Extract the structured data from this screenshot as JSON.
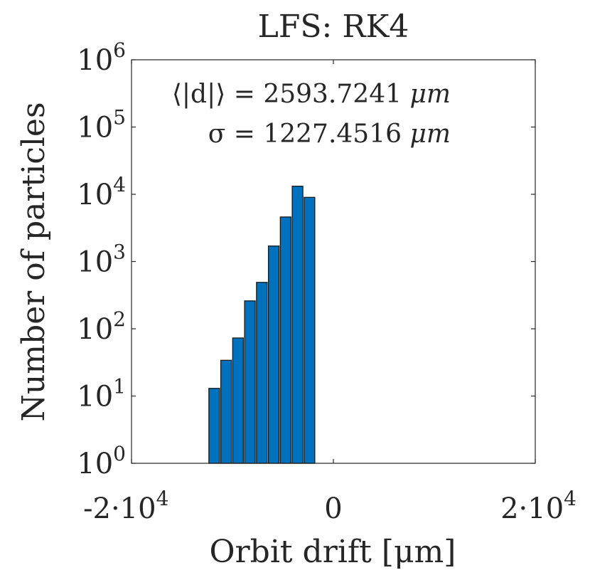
{
  "chart_data": {
    "type": "bar",
    "title": "LFS: RK4",
    "xlabel": "Orbit drift [μm]",
    "ylabel": "Number of particles",
    "yscale": "log",
    "xlim": [
      -20000,
      20000
    ],
    "ylim": [
      1,
      1000000
    ],
    "x_ticks": [
      {
        "value": -20000,
        "base": "-2·10",
        "exp": "4"
      },
      {
        "value": 0,
        "base": "0",
        "exp": ""
      },
      {
        "value": 20000,
        "base": "2·10",
        "exp": "4"
      }
    ],
    "y_ticks": [
      {
        "value": 1,
        "base": "10",
        "exp": "0"
      },
      {
        "value": 10,
        "base": "10",
        "exp": "1"
      },
      {
        "value": 100,
        "base": "10",
        "exp": "2"
      },
      {
        "value": 1000,
        "base": "10",
        "exp": "3"
      },
      {
        "value": 10000,
        "base": "10",
        "exp": "4"
      },
      {
        "value": 100000,
        "base": "10",
        "exp": "5"
      },
      {
        "value": 1000000,
        "base": "10",
        "exp": "6"
      }
    ],
    "bin_width": 1180,
    "bin_centers": [
      -11810,
      -10630,
      -9450,
      -8270,
      -7090,
      -5910,
      -4730,
      -3550,
      -2370
    ],
    "values": [
      13,
      34,
      73,
      260,
      490,
      1700,
      4600,
      13200,
      9000
    ],
    "bar_color": "#0072BD",
    "annotations": [
      {
        "pre": "⟨|d|⟩ = 2593.7241 ",
        "unit": "μm"
      },
      {
        "pre": "σ = 1227.4516 ",
        "unit": "μm"
      }
    ]
  }
}
